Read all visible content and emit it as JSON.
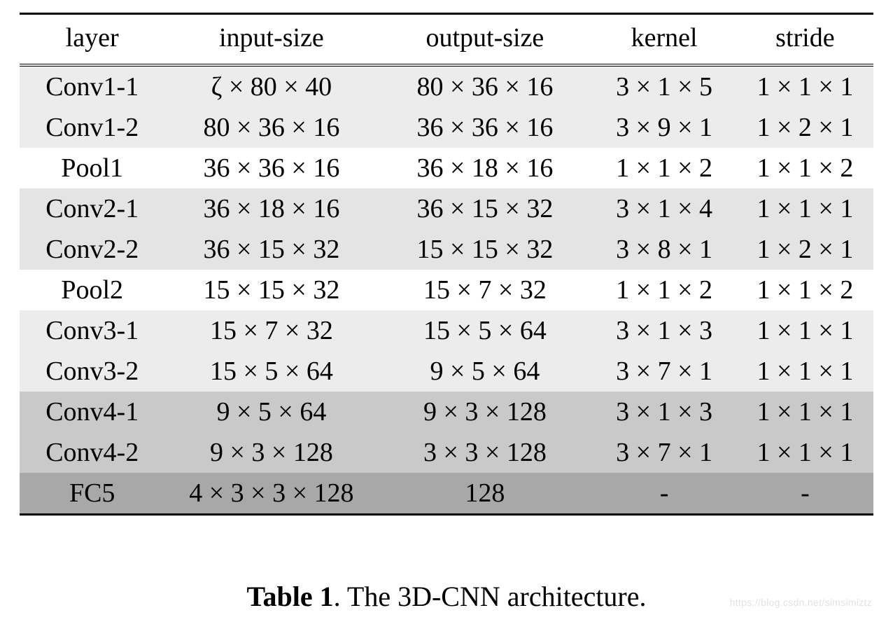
{
  "table": {
    "columns": [
      "layer",
      "input-size",
      "output-size",
      "kernel",
      "stride"
    ],
    "row_bg_colors": [
      "#ececec",
      "#ececec",
      "#ffffff",
      "#e4e4e4",
      "#e4e4e4",
      "#ffffff",
      "#ececec",
      "#ececec",
      "#c9c9c9",
      "#c9c9c9",
      "#a8a8a8"
    ],
    "rows": [
      [
        "Conv1-1",
        "ζ × 80 × 40",
        "80 × 36 × 16",
        "3 × 1 × 5",
        "1 × 1 × 1"
      ],
      [
        "Conv1-2",
        "80 × 36 × 16",
        "36 × 36 × 16",
        "3 × 9 × 1",
        "1 × 2 × 1"
      ],
      [
        "Pool1",
        "36 × 36 × 16",
        "36 × 18 × 16",
        "1 × 1 × 2",
        "1 × 1 × 2"
      ],
      [
        "Conv2-1",
        "36 × 18 × 16",
        "36 × 15 × 32",
        "3 × 1 × 4",
        "1 × 1 × 1"
      ],
      [
        "Conv2-2",
        "36 × 15 × 32",
        "15 × 15 × 32",
        "3 × 8 × 1",
        "1 × 2 × 1"
      ],
      [
        "Pool2",
        "15 × 15 × 32",
        "15 × 7 × 32",
        "1 × 1 × 2",
        "1 × 1 × 2"
      ],
      [
        "Conv3-1",
        "15 × 7 × 32",
        "15 × 5 × 64",
        "3 × 1 × 3",
        "1 × 1 × 1"
      ],
      [
        "Conv3-2",
        "15 × 5 × 64",
        "9 × 5 × 64",
        "3 × 7 × 1",
        "1 × 1 × 1"
      ],
      [
        "Conv4-1",
        "9 × 5 × 64",
        "9 × 3 × 128",
        "3 × 1 × 3",
        "1 × 1 × 1"
      ],
      [
        "Conv4-2",
        "9 × 3 × 128",
        "3 × 3 × 128",
        "3 × 7 × 1",
        "1 × 1 × 1"
      ],
      [
        "FC5",
        "4 × 3 × 3 × 128",
        "128",
        "-",
        "-"
      ]
    ]
  },
  "caption_label": "Table 1",
  "caption_text": ". The 3D-CNN architecture.",
  "watermark": "https://blog.csdn.net/simsimiztz",
  "colors": {
    "background": "#ffffff",
    "text": "#000000",
    "rule": "#000000",
    "watermark": "rgba(0,0,0,0.12)"
  },
  "font_sizes": {
    "table": 38,
    "caption": 40,
    "watermark": 14
  }
}
